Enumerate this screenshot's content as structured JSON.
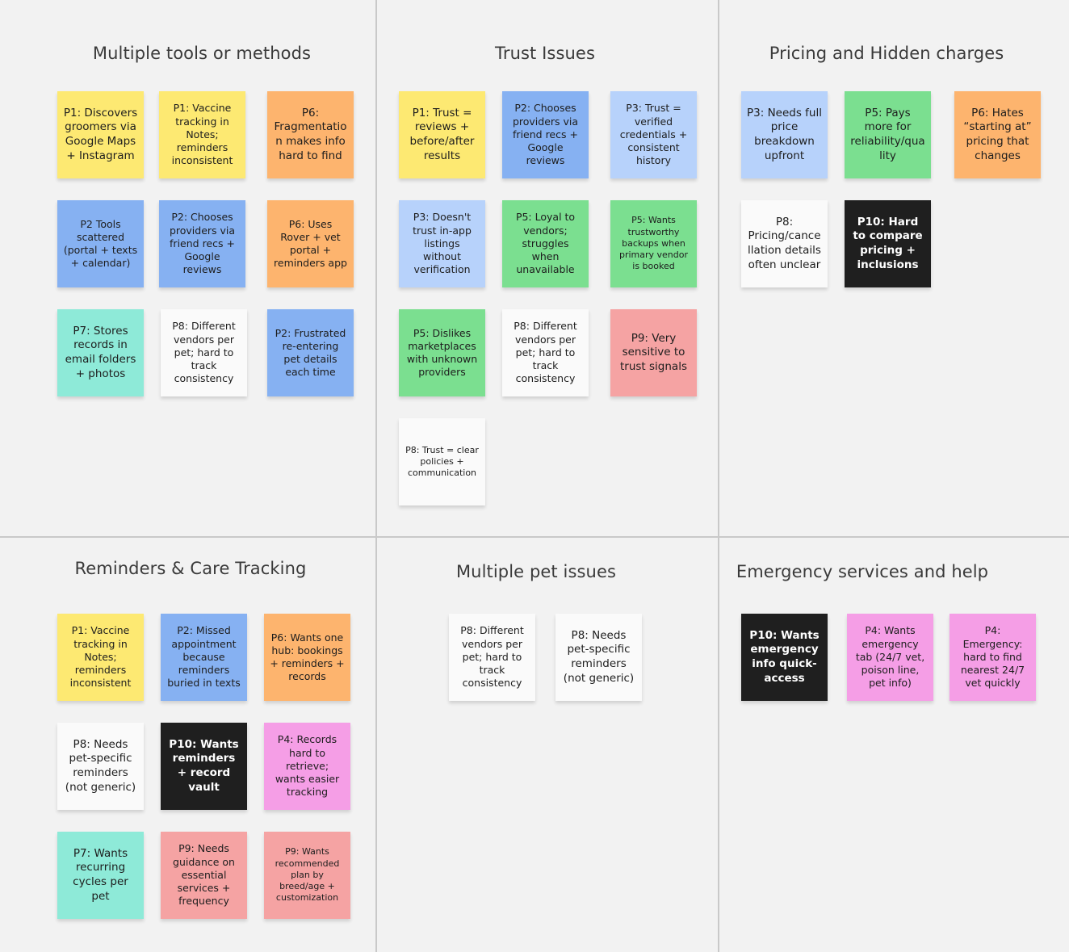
{
  "colors": {
    "yellow": "#fde972",
    "orange": "#fdb46e",
    "blue": "#86b1f2",
    "lightblue": "#b7d2fb",
    "green": "#7bdf90",
    "teal": "#8eead8",
    "white": "#fafafa",
    "pink": "#f5a3a3",
    "magenta": "#f59ee6",
    "black": "#1f1f1f"
  },
  "sections": [
    {
      "title": "Multiple tools or methods",
      "notes": [
        {
          "text": "P1: Discovers groomers via Google Maps + Instagram",
          "color": "yellow"
        },
        {
          "text": "P1: Vaccine tracking in Notes; reminders inconsistent",
          "color": "yellow"
        },
        {
          "text": "P6: Fragmentation makes info hard to find",
          "color": "orange"
        },
        {
          "text": "P2 Tools scattered (portal + texts + calendar)",
          "color": "blue"
        },
        {
          "text": "P2: Chooses providers via friend recs + Google reviews",
          "color": "blue"
        },
        {
          "text": "P6: Uses Rover + vet portal + reminders app",
          "color": "orange"
        },
        {
          "text": "P7: Stores records in email folders + photos",
          "color": "teal"
        },
        {
          "text": "P8: Different vendors per pet; hard to track consistency",
          "color": "white"
        },
        {
          "text": "P2: Frustrated re-entering pet details each time",
          "color": "blue"
        }
      ]
    },
    {
      "title": "Trust Issues",
      "notes": [
        {
          "text": "P1: Trust = reviews + before/after results",
          "color": "yellow"
        },
        {
          "text": "P2: Chooses providers via friend recs + Google reviews",
          "color": "blue"
        },
        {
          "text": "P3: Trust = verified credentials + consistent history",
          "color": "lightblue"
        },
        {
          "text": "P3: Doesn't trust in-app listings without verification",
          "color": "lightblue"
        },
        {
          "text": "P5: Loyal to vendors; struggles when unavailable",
          "color": "green"
        },
        {
          "text": "P5: Wants trustworthy backups when primary vendor is booked",
          "color": "green"
        },
        {
          "text": "P5: Dislikes marketplaces with unknown providers",
          "color": "green"
        },
        {
          "text": "P8: Different vendors per pet; hard to track consistency",
          "color": "white"
        },
        {
          "text": "P9: Very sensitive to trust signals",
          "color": "pink"
        },
        {
          "text": "P8: Trust = clear policies + communication",
          "color": "white"
        }
      ]
    },
    {
      "title": "Pricing and Hidden charges",
      "notes": [
        {
          "text": "P3: Needs full price breakdown upfront",
          "color": "lightblue"
        },
        {
          "text": "P5: Pays more for reliability/quality",
          "color": "green"
        },
        {
          "text": "P6: Hates “starting at” pricing that changes",
          "color": "orange"
        },
        {
          "text": "P8: Pricing/cancellation details often unclear",
          "color": "white"
        },
        {
          "text": "P10: Hard to compare pricing + inclusions",
          "color": "black"
        }
      ]
    },
    {
      "title": "Reminders & Care Tracking",
      "notes": [
        {
          "text": "P1: Vaccine tracking in Notes; reminders inconsistent",
          "color": "yellow"
        },
        {
          "text": "P2: Missed appointment because reminders buried in texts",
          "color": "blue"
        },
        {
          "text": "P6: Wants one hub: bookings + reminders + records",
          "color": "orange"
        },
        {
          "text": "P8: Needs pet-specific reminders (not generic)",
          "color": "white"
        },
        {
          "text": "P10: Wants reminders + record vault",
          "color": "black"
        },
        {
          "text": "P4: Records hard to retrieve; wants easier tracking",
          "color": "magenta"
        },
        {
          "text": "P7: Wants recurring cycles per pet",
          "color": "teal"
        },
        {
          "text": "P9: Needs guidance on essential services + frequency",
          "color": "pink"
        },
        {
          "text": "P9: Wants recommended plan by breed/age + customization",
          "color": "pink"
        }
      ]
    },
    {
      "title": "Multiple pet issues",
      "notes": [
        {
          "text": "P8: Different vendors per pet; hard to track consistency",
          "color": "white"
        },
        {
          "text": "P8: Needs pet-specific reminders (not generic)",
          "color": "white"
        }
      ]
    },
    {
      "title": "Emergency services and help",
      "notes": [
        {
          "text": "P10: Wants emergency info quick-access",
          "color": "black"
        },
        {
          "text": "P4: Wants emergency tab (24/7 vet, poison line, pet info)",
          "color": "magenta"
        },
        {
          "text": "P4: Emergency: hard to find nearest 24/7 vet quickly",
          "color": "magenta"
        }
      ]
    }
  ]
}
